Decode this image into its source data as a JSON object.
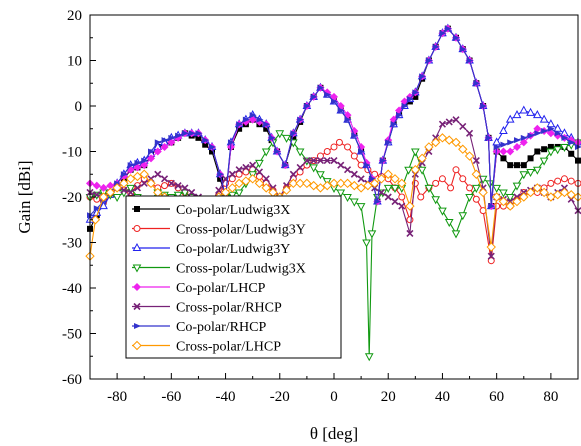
{
  "chart_data": {
    "type": "line",
    "xlabel": "θ [deg]",
    "ylabel": "Gain [dBi]",
    "xlim": [
      -90,
      90
    ],
    "ylim": [
      -60,
      20
    ],
    "x_ticks": [
      -80,
      -60,
      -40,
      -20,
      0,
      20,
      40,
      60,
      80
    ],
    "y_ticks": [
      20,
      10,
      0,
      -10,
      -20,
      -30,
      -40,
      -50,
      -60
    ],
    "grid": false,
    "legend_placement": "bottom-left",
    "series": [
      {
        "name": "Co-polar/Ludwig3X",
        "color": "#000000",
        "marker": "square-filled",
        "style": "solid",
        "x": [
          -90,
          -85,
          -80,
          -75,
          -70,
          -65,
          -60,
          -55,
          -50,
          -45,
          -42,
          -40,
          -38,
          -35,
          -30,
          -25,
          -21,
          -18,
          -15,
          -10,
          -5,
          0,
          5,
          10,
          14,
          16,
          18,
          22,
          26,
          30,
          35,
          40,
          42,
          45,
          50,
          55,
          57,
          58,
          60,
          65,
          70,
          75,
          80,
          85,
          90
        ],
        "y": [
          -27,
          -21,
          -18,
          -14,
          -13,
          -9,
          -8,
          -6,
          -7,
          -10,
          -16,
          -20,
          -9,
          -5,
          -3,
          -5,
          -10,
          -13,
          -7,
          0,
          4,
          1,
          -3,
          -10,
          -16,
          -21,
          -12,
          -4,
          0,
          2,
          10,
          16,
          17,
          15,
          10,
          0,
          -7,
          -22,
          -10,
          -13,
          -13,
          -10,
          -9,
          -9,
          -12
        ]
      },
      {
        "name": "Cross-polar/Ludwig3Y",
        "color": "#ee2222",
        "marker": "circle-open",
        "style": "solid",
        "x": [
          -90,
          -85,
          -80,
          -75,
          -70,
          -65,
          -60,
          -55,
          -50,
          -45,
          -40,
          -35,
          -30,
          -25,
          -20,
          -15,
          -10,
          -5,
          0,
          2,
          5,
          10,
          15,
          20,
          25,
          28,
          30,
          32,
          35,
          40,
          43,
          45,
          50,
          55,
          58,
          60,
          65,
          70,
          75,
          80,
          85,
          90
        ],
        "y": [
          -20,
          -21,
          -18,
          -19,
          -16,
          -18,
          -17,
          -19,
          -21,
          -22,
          -17,
          -15,
          -14,
          -17,
          -20,
          -16,
          -13,
          -11,
          -9,
          -8,
          -9,
          -13,
          -15,
          -16,
          -20,
          -25,
          -17,
          -20,
          -18,
          -16,
          -18,
          -14,
          -18,
          -23,
          -34,
          -22,
          -22,
          -19,
          -19,
          -17,
          -16,
          -17
        ]
      },
      {
        "name": "Co-polar/Ludwig3Y",
        "color": "#2222ee",
        "marker": "triangle-up-open",
        "style": "solid",
        "x": [
          -90,
          -85,
          -80,
          -75,
          -70,
          -65,
          -60,
          -55,
          -50,
          -45,
          -42,
          -40,
          -38,
          -35,
          -30,
          -25,
          -21,
          -18,
          -15,
          -10,
          -5,
          0,
          5,
          10,
          14,
          16,
          18,
          22,
          26,
          30,
          35,
          40,
          42,
          45,
          50,
          55,
          57,
          58,
          60,
          65,
          70,
          75,
          80,
          85,
          90
        ],
        "y": [
          -25,
          -22,
          -17,
          -13,
          -12,
          -9,
          -7,
          -6,
          -6,
          -9,
          -15,
          -20,
          -8,
          -4,
          -2,
          -4,
          -10,
          -13,
          -6,
          0,
          4,
          1,
          -3,
          -10,
          -16,
          -21,
          -12,
          -4,
          0,
          3,
          10,
          16,
          17,
          15,
          10,
          0,
          -7,
          -22,
          -8,
          -3,
          -1,
          -2,
          -4,
          -6,
          -8
        ]
      },
      {
        "name": "Cross-polar/Ludwig3X",
        "color": "#119911",
        "marker": "triangle-down-open",
        "style": "solid",
        "x": [
          -90,
          -85,
          -80,
          -75,
          -70,
          -65,
          -60,
          -55,
          -50,
          -45,
          -40,
          -35,
          -30,
          -25,
          -20,
          -15,
          -10,
          -5,
          0,
          5,
          10,
          12,
          13,
          14,
          16,
          20,
          25,
          30,
          35,
          40,
          45,
          50,
          55,
          60,
          65,
          70,
          75,
          80,
          85,
          90
        ],
        "y": [
          -20,
          -19,
          -20,
          -18,
          -22,
          -19,
          -20,
          -19,
          -21,
          -22,
          -20,
          -19,
          -15,
          -10,
          -6,
          -8,
          -12,
          -15,
          -18,
          -20,
          -22,
          -30,
          -55,
          -28,
          -20,
          -18,
          -18,
          -10,
          -18,
          -23,
          -28,
          -20,
          -16,
          -18,
          -20,
          -15,
          -14,
          -10,
          -9,
          -8
        ]
      },
      {
        "name": "Co-polar/LHCP",
        "color": "#ee22ee",
        "marker": "diamond-filled",
        "style": "solid",
        "x": [
          -90,
          -85,
          -80,
          -75,
          -70,
          -65,
          -60,
          -55,
          -50,
          -45,
          -42,
          -40,
          -38,
          -35,
          -30,
          -25,
          -21,
          -18,
          -15,
          -10,
          -5,
          0,
          5,
          10,
          14,
          16,
          18,
          22,
          26,
          30,
          35,
          40,
          42,
          45,
          50,
          55,
          57,
          58,
          60,
          65,
          70,
          75,
          80,
          85,
          90
        ],
        "y": [
          -17,
          -18,
          -17,
          -14,
          -13,
          -10,
          -8,
          -6,
          -6,
          -9,
          -15,
          -20,
          -9,
          -4,
          -3,
          -4,
          -10,
          -13,
          -6,
          0,
          4,
          2,
          -2,
          -9,
          -16,
          -21,
          -12,
          -3,
          1,
          3,
          10,
          16,
          17,
          15,
          10,
          0,
          -7,
          -22,
          -10,
          -10,
          -8,
          -5,
          -6,
          -7,
          -8
        ]
      },
      {
        "name": "Cross-polar/RHCP",
        "color": "#772277",
        "marker": "x",
        "style": "solid",
        "x": [
          -90,
          -85,
          -80,
          -75,
          -70,
          -65,
          -60,
          -55,
          -50,
          -45,
          -40,
          -35,
          -30,
          -25,
          -20,
          -15,
          -10,
          -5,
          0,
          5,
          10,
          15,
          20,
          25,
          28,
          30,
          35,
          40,
          45,
          50,
          55,
          58,
          60,
          65,
          70,
          75,
          80,
          85,
          90
        ],
        "y": [
          -19,
          -20,
          -18,
          -19,
          -17,
          -15,
          -17,
          -18,
          -20,
          -21,
          -16,
          -14,
          -13,
          -16,
          -20,
          -15,
          -12,
          -12,
          -12,
          -14,
          -16,
          -18,
          -20,
          -22,
          -28,
          -15,
          -10,
          -4,
          -3,
          -6,
          -18,
          -33,
          -20,
          -21,
          -19,
          -18,
          -20,
          -18,
          -23
        ]
      },
      {
        "name": "Co-polar/RHCP",
        "color": "#3333cc",
        "marker": "triangle-right-filled",
        "style": "solid",
        "x": [
          -90,
          -85,
          -80,
          -75,
          -70,
          -65,
          -60,
          -55,
          -50,
          -45,
          -42,
          -40,
          -38,
          -35,
          -30,
          -25,
          -21,
          -18,
          -15,
          -10,
          -5,
          0,
          5,
          10,
          14,
          16,
          18,
          22,
          26,
          30,
          35,
          40,
          42,
          45,
          50,
          55,
          57,
          58,
          60,
          65,
          70,
          75,
          80,
          85,
          90
        ],
        "y": [
          -24,
          -21,
          -17,
          -13,
          -12,
          -8,
          -7,
          -6,
          -6,
          -9,
          -15,
          -20,
          -8,
          -4,
          -2,
          -4,
          -10,
          -13,
          -6,
          0,
          4,
          1,
          -3,
          -10,
          -16,
          -21,
          -12,
          -4,
          0,
          3,
          10,
          16,
          17,
          15,
          10,
          0,
          -7,
          -22,
          -9,
          -8,
          -7,
          -6,
          -5,
          -7,
          -9
        ]
      },
      {
        "name": "Cross-polar/LHCP",
        "color": "#ff9900",
        "marker": "diamond-open",
        "style": "solid",
        "x": [
          -90,
          -88,
          -85,
          -80,
          -75,
          -70,
          -65,
          -60,
          -55,
          -50,
          -45,
          -40,
          -35,
          -30,
          -25,
          -20,
          -15,
          -10,
          -5,
          0,
          5,
          10,
          15,
          20,
          25,
          28,
          30,
          35,
          40,
          45,
          50,
          55,
          58,
          60,
          65,
          70,
          75,
          80,
          85,
          90
        ],
        "y": [
          -33,
          -25,
          -20,
          -18,
          -16,
          -15,
          -19,
          -21,
          -23,
          -21,
          -21,
          -19,
          -17,
          -16,
          -18,
          -20,
          -17,
          -17,
          -18,
          -17,
          -17,
          -18,
          -17,
          -15,
          -17,
          -22,
          -14,
          -9,
          -7,
          -8,
          -11,
          -19,
          -31,
          -20,
          -22,
          -20,
          -18,
          -20,
          -19,
          -20
        ]
      }
    ]
  }
}
